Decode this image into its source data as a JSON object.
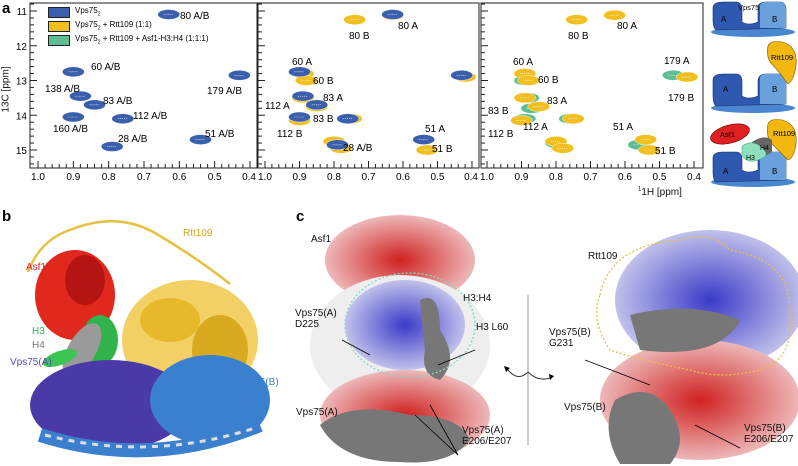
{
  "panel_labels": {
    "a": "a",
    "b": "b",
    "c": "c"
  },
  "colors": {
    "vps75": "#3a5fad",
    "rtt109": "#f2c01e",
    "asf1_h3h4": "#5bbf93",
    "asf1": "#e02020",
    "h3": "#2fb34a",
    "h4": "#808080",
    "vps75_a": "#4a3aa8",
    "vps75_b": "#3b7fcf",
    "positive": "#3030c0",
    "negative": "#d02020"
  },
  "chart_data": {
    "type": "scatter",
    "xlabel": "1H [ppm]",
    "ylabel": "13C [ppm]",
    "xlim": [
      1.0,
      0.4
    ],
    "ylim": [
      10.8,
      15.5
    ],
    "x_ticks": [
      "1.0",
      "0.9",
      "0.8",
      "0.7",
      "0.6",
      "0.5",
      "0.4"
    ],
    "y_ticks": [
      "11",
      "12",
      "13",
      "14",
      "15"
    ],
    "legend": {
      "placement": "top-left",
      "entries": [
        {
          "label": "Vps75",
          "sub": "2",
          "suffix": "",
          "color": "#3a5fad"
        },
        {
          "label": "Vps75",
          "sub": "2",
          "suffix": " + Rtt109 (1:1)",
          "color": "#f2c01e"
        },
        {
          "label": "Vps75",
          "sub": "2",
          "suffix": " + Rtt109 + Asf1-H3:H4 (1:1:1)",
          "color": "#5bbf93"
        }
      ]
    },
    "panels": [
      {
        "series": [
          {
            "name": "Vps75",
            "color": "#3a5fad",
            "points": [
              [
                0.63,
                11.1
              ],
              [
                0.9,
                12.75
              ],
              [
                0.88,
                13.45
              ],
              [
                0.84,
                13.7
              ],
              [
                0.9,
                14.05
              ],
              [
                0.76,
                14.1
              ],
              [
                0.79,
                14.9
              ],
              [
                0.54,
                14.7
              ],
              [
                0.43,
                12.85
              ]
            ]
          }
        ],
        "labels": [
          "80 A/B",
          "60 A/B",
          "138 A/B",
          "83 A/B",
          "112 A/B",
          "160 A/B",
          "28 A/B",
          "51 A/B",
          "179 A/B"
        ]
      },
      {
        "series": [
          {
            "name": "Vps75 + Rtt109 (1:1)",
            "color": "#f2c01e",
            "points": [
              [
                0.63,
                11.12
              ],
              [
                0.74,
                11.25
              ],
              [
                0.89,
                12.8
              ],
              [
                0.88,
                13.0
              ],
              [
                0.89,
                13.5
              ],
              [
                0.85,
                13.75
              ],
              [
                0.9,
                14.15
              ],
              [
                0.75,
                14.1
              ],
              [
                0.8,
                14.75
              ],
              [
                0.78,
                14.95
              ],
              [
                0.54,
                14.7
              ],
              [
                0.53,
                15.0
              ],
              [
                0.42,
                12.9
              ]
            ]
          },
          {
            "name": "Vps75",
            "color": "#3a5fad",
            "points": [
              [
                0.63,
                11.1
              ],
              [
                0.9,
                12.75
              ],
              [
                0.89,
                13.45
              ],
              [
                0.85,
                13.7
              ],
              [
                0.9,
                14.05
              ],
              [
                0.76,
                14.1
              ],
              [
                0.79,
                14.85
              ],
              [
                0.54,
                14.7
              ],
              [
                0.43,
                12.85
              ]
            ]
          }
        ],
        "labels": [
          "80 A",
          "80 B",
          "60 A",
          "60 B",
          "83 A",
          "112 A",
          "83 B",
          "112 B",
          "28 A/B",
          "51 A",
          "51 B"
        ]
      },
      {
        "series": [
          {
            "name": "Vps75 + Rtt109 + Asf1-H3:H4 (1:1:1)",
            "color": "#5bbf93",
            "points": [
              [
                0.74,
                11.25
              ],
              [
                0.89,
                13.0
              ],
              [
                0.88,
                13.5
              ],
              [
                0.87,
                13.8
              ],
              [
                0.89,
                14.1
              ],
              [
                0.76,
                14.1
              ],
              [
                0.8,
                14.8
              ],
              [
                0.56,
                14.85
              ],
              [
                0.46,
                12.85
              ]
            ]
          },
          {
            "name": "Vps75 + Rtt109 (1:1)",
            "color": "#f2c01e",
            "points": [
              [
                0.63,
                11.12
              ],
              [
                0.74,
                11.25
              ],
              [
                0.89,
                12.8
              ],
              [
                0.88,
                13.0
              ],
              [
                0.89,
                13.5
              ],
              [
                0.85,
                13.75
              ],
              [
                0.9,
                14.15
              ],
              [
                0.75,
                14.1
              ],
              [
                0.8,
                14.75
              ],
              [
                0.78,
                14.95
              ],
              [
                0.54,
                14.7
              ],
              [
                0.53,
                15.0
              ],
              [
                0.42,
                12.9
              ]
            ]
          }
        ],
        "labels": [
          "80 A",
          "80 B",
          "60 A",
          "60 B",
          "83 A",
          "83 B",
          "112 A",
          "112 B",
          "51 A",
          "51 B",
          "179 A",
          "179 B"
        ]
      }
    ]
  },
  "cartoons": {
    "vps75": "Vps75",
    "a": "A",
    "b": "B",
    "rtt109": "Rtt109",
    "asf1": "Asf1",
    "h3": "H3",
    "h4": "H4"
  },
  "panel_b": {
    "rtt109": "Rtt109",
    "asf1": "Asf1",
    "h3": "H3",
    "h4": "H4",
    "vps75_a": "Vps75(A)",
    "vps75_b": "Vps75(B)"
  },
  "panel_c": {
    "asf1": "Asf1",
    "h3h4": "H3:H4",
    "vps75a_d225": [
      "Vps75(A)",
      "D225"
    ],
    "h3_l60": "H3 L60",
    "vps75a": "Vps75(A)",
    "vps75a_e206": [
      "Vps75(A)",
      "E206/E207"
    ],
    "rtt109": "Rtt109",
    "vps75b_g231": [
      "Vps75(B)",
      "G231"
    ],
    "vps75b": "Vps75(B)",
    "vps75b_e206": [
      "Vps75(B)",
      "E206/E207"
    ]
  }
}
